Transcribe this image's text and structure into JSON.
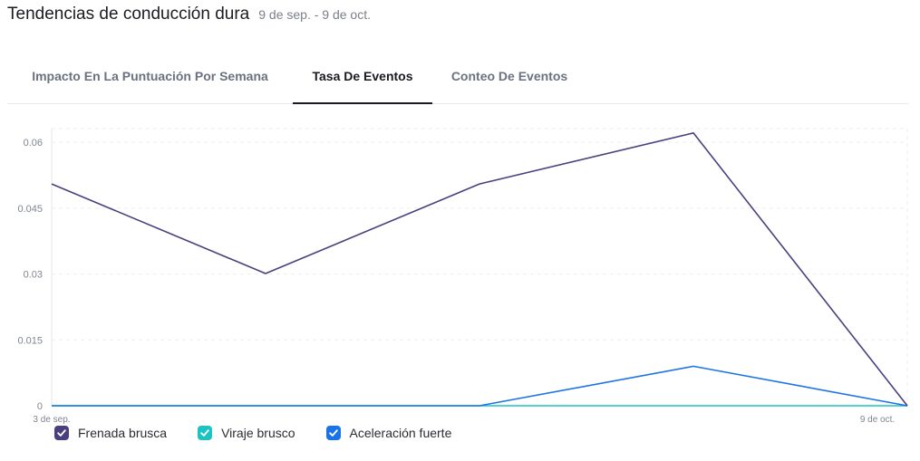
{
  "header": {
    "title": "Tendencias de conducción dura",
    "date_range": "9 de sep. - 9 de oct."
  },
  "tabs": [
    {
      "label": "Impacto En La Puntuación Por Semana",
      "active": false
    },
    {
      "label": "Tasa De Eventos",
      "active": true
    },
    {
      "label": "Conteo De Eventos",
      "active": false
    }
  ],
  "chart_data": {
    "type": "line",
    "x_tick_labels": [
      "3 de sep.",
      "9 de oct."
    ],
    "y_ticks": [
      "0.06",
      "0.045",
      "0.03",
      "0.015",
      "0"
    ],
    "y_tick_values": [
      0.06,
      0.045,
      0.03,
      0.015,
      0
    ],
    "ylim": [
      0,
      0.06
    ],
    "grid": true,
    "legend_placement": "bottom-left",
    "series": [
      {
        "name": "Frenada brusca",
        "color": "#4b3f7e",
        "values": [
          0.0505,
          0.0301,
          0.0505,
          0.0621,
          0
        ]
      },
      {
        "name": "Viraje brusco",
        "color": "#1cc3c2",
        "values": [
          0,
          0,
          0,
          0,
          0
        ]
      },
      {
        "name": "Aceleración fuerte",
        "color": "#1b73e8",
        "values": [
          0,
          0,
          0,
          0.009,
          0
        ]
      }
    ]
  }
}
